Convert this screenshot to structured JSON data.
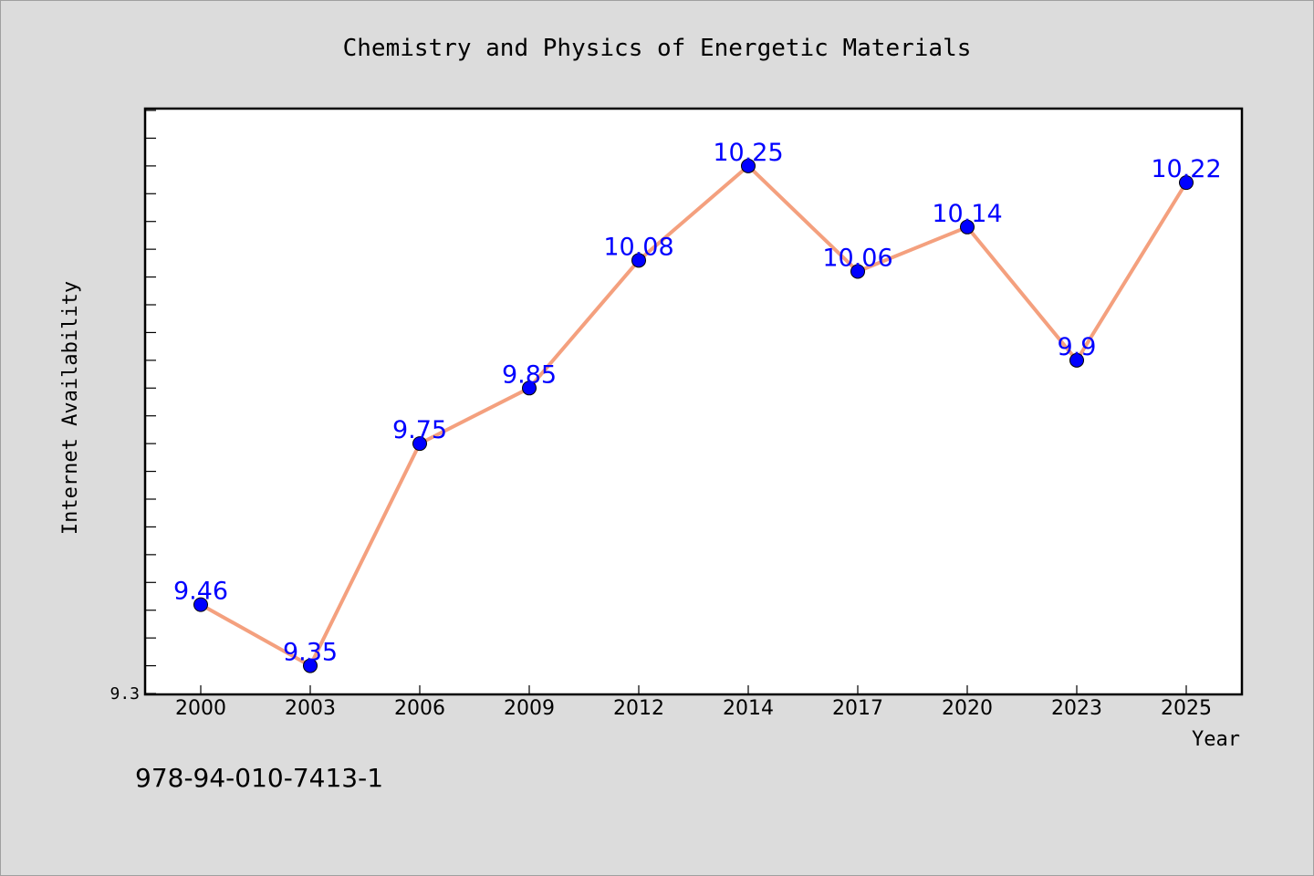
{
  "chart_data": {
    "type": "line",
    "title": "Chemistry and Physics of Energetic Materials",
    "xlabel": "Year",
    "ylabel": "Internet Availability",
    "categories": [
      "2000",
      "2003",
      "2006",
      "2009",
      "2012",
      "2014",
      "2017",
      "2020",
      "2023",
      "2025"
    ],
    "series": [
      {
        "values": [
          9.46,
          9.35,
          9.75,
          9.85,
          10.08,
          10.25,
          10.06,
          10.14,
          9.9,
          10.22
        ],
        "labels": [
          "9.46",
          "9.35",
          "9.75",
          "9.85",
          "10.08",
          "10.25",
          "10.06",
          "10.14",
          "9.9",
          "10.22"
        ],
        "line_color": "#f4a07e",
        "marker_color": "#0000ff",
        "label_color": "#0000ff"
      }
    ],
    "ylim": [
      9.3,
      10.35
    ],
    "y_tick_labels": [
      {
        "value": 9.3,
        "label": "9.3"
      }
    ],
    "y_minor_tick_step": 0.05,
    "grid": false,
    "legend": "none",
    "background_color": "#dcdcdc",
    "plot_background_color": "#ffffff"
  },
  "footer": {
    "isbn": "978-94-010-7413-1"
  }
}
